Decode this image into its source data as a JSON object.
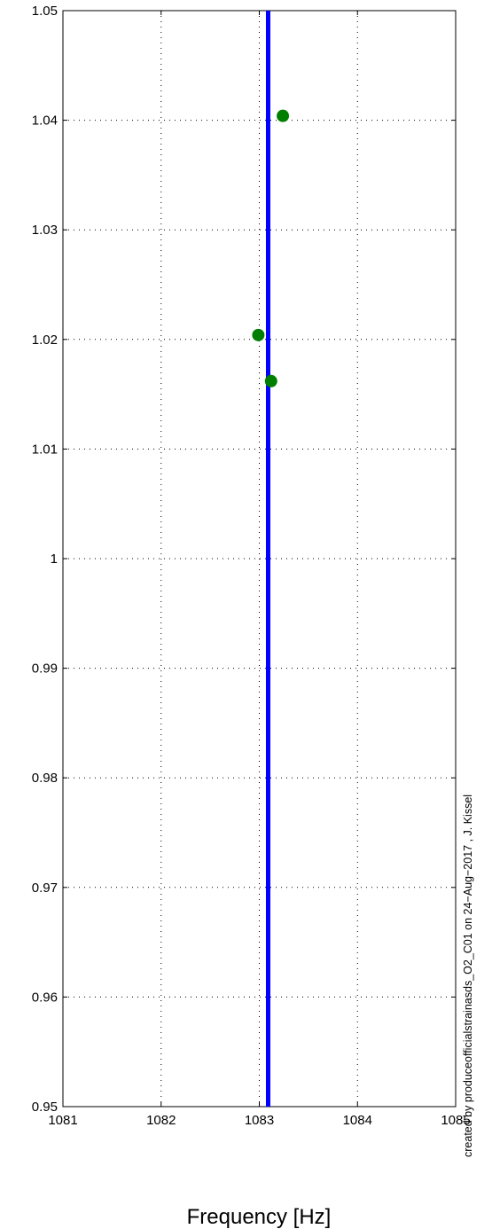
{
  "chart_data": {
    "type": "scatter",
    "xlabel": "Frequency [Hz]",
    "annotation": "created by produceofficialstrainasds_O2_C01 on 24−Aug−2017 , J. Kissel",
    "xlim": [
      1081,
      1085
    ],
    "xticks": [
      1081,
      1082,
      1083,
      1084,
      1085
    ],
    "ylim": [
      0.95,
      1.05
    ],
    "yticks": [
      0.95,
      0.96,
      0.97,
      0.98,
      0.99,
      1,
      1.01,
      1.02,
      1.03,
      1.04,
      1.05
    ],
    "grid": true,
    "series": [
      {
        "type": "line",
        "color": "#0000ff",
        "x": [
          1083.09,
          1083.09
        ],
        "values": [
          0.95,
          1.05
        ]
      },
      {
        "type": "scatter",
        "color": "#007f00",
        "x": [
          1083.24,
          1082.99,
          1083.12
        ],
        "values": [
          1.0404,
          1.0204,
          1.0162
        ]
      }
    ]
  }
}
